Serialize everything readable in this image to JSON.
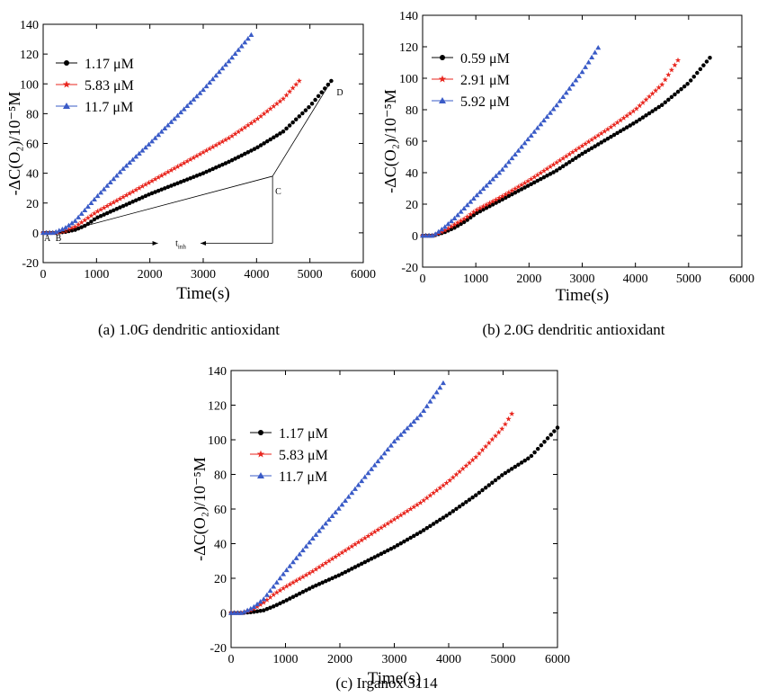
{
  "captions": {
    "a": "(a) 1.0G dendritic antioxidant",
    "b": "(b) 2.0G dendritic antioxidant",
    "c": "(c) Irganox 3114"
  },
  "chart_data": [
    {
      "id": "a",
      "type": "scatter",
      "xlabel": "Time(s)",
      "ylabel": "-ΔC(O₂)/10⁻⁵M",
      "xlim": [
        0,
        6000
      ],
      "ylim": [
        -20,
        140
      ],
      "xticks": [
        0,
        1000,
        2000,
        3000,
        4000,
        5000,
        6000
      ],
      "yticks": [
        -20,
        0,
        20,
        40,
        60,
        80,
        100,
        120,
        140
      ],
      "grid": false,
      "legend_position": "top-left",
      "annotations": {
        "A": "A",
        "B": "B",
        "C": "C",
        "D": "D",
        "t_inh": "t",
        "t_inh_sub": "inh"
      },
      "series": [
        {
          "name": "1.17 μM",
          "color": "#000000",
          "marker": "circle",
          "x_end": 5400,
          "points": [
            [
              0,
              0
            ],
            [
              200,
              0
            ],
            [
              400,
              0.5
            ],
            [
              600,
              2
            ],
            [
              800,
              5
            ],
            [
              1000,
              10
            ],
            [
              1500,
              18
            ],
            [
              2000,
              26
            ],
            [
              2500,
              33
            ],
            [
              3000,
              40
            ],
            [
              3500,
              48
            ],
            [
              4000,
              57
            ],
            [
              4500,
              68
            ],
            [
              5000,
              85
            ],
            [
              5400,
              102
            ]
          ]
        },
        {
          "name": "5.83 μM",
          "color": "#e8261e",
          "marker": "star",
          "x_end": 4800,
          "points": [
            [
              0,
              0
            ],
            [
              200,
              0
            ],
            [
              400,
              1
            ],
            [
              600,
              4
            ],
            [
              800,
              9
            ],
            [
              1000,
              14
            ],
            [
              1500,
              24
            ],
            [
              2000,
              34
            ],
            [
              2500,
              44
            ],
            [
              3000,
              54
            ],
            [
              3500,
              64
            ],
            [
              4000,
              76
            ],
            [
              4500,
              90
            ],
            [
              4800,
              102
            ]
          ]
        },
        {
          "name": "11.7 μM",
          "color": "#3a5bc7",
          "marker": "triangle",
          "x_end": 3950,
          "points": [
            [
              0,
              0
            ],
            [
              200,
              0
            ],
            [
              400,
              3
            ],
            [
              600,
              8
            ],
            [
              800,
              16
            ],
            [
              1000,
              24
            ],
            [
              1500,
              43
            ],
            [
              2000,
              60
            ],
            [
              2500,
              78
            ],
            [
              3000,
              96
            ],
            [
              3500,
              116
            ],
            [
              3950,
              135
            ]
          ]
        }
      ]
    },
    {
      "id": "b",
      "type": "scatter",
      "xlabel": "Time(s)",
      "ylabel": "-ΔC(O₂)/10⁻⁵M",
      "xlim": [
        0,
        6000
      ],
      "ylim": [
        -20,
        140
      ],
      "xticks": [
        0,
        1000,
        2000,
        3000,
        4000,
        5000,
        6000
      ],
      "yticks": [
        -20,
        0,
        20,
        40,
        60,
        80,
        100,
        120,
        140
      ],
      "grid": false,
      "legend_position": "top-left",
      "series": [
        {
          "name": "0.59 μM",
          "color": "#000000",
          "marker": "circle",
          "x_end": 5400,
          "points": [
            [
              0,
              0
            ],
            [
              200,
              0
            ],
            [
              400,
              2
            ],
            [
              600,
              5
            ],
            [
              800,
              9
            ],
            [
              1000,
              14
            ],
            [
              1500,
              23
            ],
            [
              2000,
              32
            ],
            [
              2500,
              41
            ],
            [
              3000,
              52
            ],
            [
              3500,
              62
            ],
            [
              4000,
              72
            ],
            [
              4500,
              83
            ],
            [
              5000,
              97
            ],
            [
              5400,
              113
            ]
          ]
        },
        {
          "name": "2.91 μM",
          "color": "#e8261e",
          "marker": "star",
          "x_end": 4850,
          "points": [
            [
              0,
              0
            ],
            [
              200,
              0
            ],
            [
              400,
              3
            ],
            [
              600,
              7
            ],
            [
              800,
              11
            ],
            [
              1000,
              16
            ],
            [
              1500,
              25
            ],
            [
              2000,
              35
            ],
            [
              2500,
              46
            ],
            [
              3000,
              57
            ],
            [
              3500,
              68
            ],
            [
              4000,
              80
            ],
            [
              4500,
              96
            ],
            [
              4850,
              114
            ]
          ]
        },
        {
          "name": "5.92 μM",
          "color": "#3a5bc7",
          "marker": "triangle",
          "x_end": 3350,
          "points": [
            [
              0,
              0
            ],
            [
              200,
              0
            ],
            [
              400,
              5
            ],
            [
              600,
              11
            ],
            [
              800,
              18
            ],
            [
              1000,
              25
            ],
            [
              1500,
              42
            ],
            [
              2000,
              62
            ],
            [
              2500,
              82
            ],
            [
              3000,
              104
            ],
            [
              3350,
              122
            ]
          ]
        }
      ]
    },
    {
      "id": "c",
      "type": "scatter",
      "xlabel": "Time(s)",
      "ylabel": "-ΔC(O₂)/10⁻⁵M",
      "xlim": [
        0,
        6000
      ],
      "ylim": [
        -20,
        140
      ],
      "xticks": [
        0,
        1000,
        2000,
        3000,
        4000,
        5000,
        6000
      ],
      "yticks": [
        -20,
        0,
        20,
        40,
        60,
        80,
        100,
        120,
        140
      ],
      "grid": false,
      "legend_position": "top-left",
      "series": [
        {
          "name": "1.17 μM",
          "color": "#000000",
          "marker": "circle",
          "x_end": 6000,
          "points": [
            [
              0,
              0
            ],
            [
              200,
              0
            ],
            [
              400,
              0.5
            ],
            [
              600,
              1.5
            ],
            [
              800,
              4
            ],
            [
              1000,
              7
            ],
            [
              1500,
              15
            ],
            [
              2000,
              22
            ],
            [
              2500,
              30
            ],
            [
              3000,
              38
            ],
            [
              3500,
              47
            ],
            [
              4000,
              57
            ],
            [
              4500,
              68
            ],
            [
              5000,
              80
            ],
            [
              5500,
              90
            ],
            [
              6000,
              107
            ]
          ]
        },
        {
          "name": "5.83 μM",
          "color": "#e8261e",
          "marker": "star",
          "x_end": 5200,
          "points": [
            [
              0,
              0
            ],
            [
              200,
              0
            ],
            [
              400,
              2
            ],
            [
              600,
              6
            ],
            [
              800,
              11
            ],
            [
              1000,
              15
            ],
            [
              1500,
              24
            ],
            [
              2000,
              34
            ],
            [
              2500,
              44
            ],
            [
              3000,
              54
            ],
            [
              3500,
              64
            ],
            [
              4000,
              76
            ],
            [
              4500,
              90
            ],
            [
              5000,
              107
            ],
            [
              5200,
              117
            ]
          ]
        },
        {
          "name": "11.7 μM",
          "color": "#3a5bc7",
          "marker": "triangle",
          "x_end": 3950,
          "points": [
            [
              0,
              0
            ],
            [
              200,
              0
            ],
            [
              400,
              3
            ],
            [
              600,
              8
            ],
            [
              800,
              16
            ],
            [
              1000,
              24
            ],
            [
              1500,
              43
            ],
            [
              2000,
              61
            ],
            [
              2500,
              80
            ],
            [
              3000,
              99
            ],
            [
              3500,
              115
            ],
            [
              3950,
              135
            ]
          ]
        }
      ]
    }
  ]
}
